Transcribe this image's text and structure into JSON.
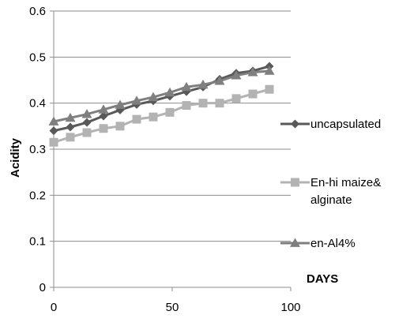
{
  "chart_data": {
    "type": "line",
    "title": "",
    "xlabel": "DAYS",
    "ylabel": "Acidity",
    "xlim": [
      0,
      100
    ],
    "ylim": [
      0,
      0.6
    ],
    "x_ticks": [
      "0",
      "50",
      "100"
    ],
    "y_ticks": [
      "0",
      "0.1",
      "0.2",
      "0.3",
      "0.4",
      "0.5",
      "0.6"
    ],
    "grid": "horizontal major gridlines",
    "legend_position": "right",
    "x": [
      0,
      7,
      14,
      21,
      28,
      35,
      42,
      49,
      56,
      63,
      70,
      77,
      84,
      91
    ],
    "series": [
      {
        "name": "uncapsulated",
        "marker": "diamond",
        "color": "#595959",
        "values": [
          0.34,
          0.348,
          0.358,
          0.372,
          0.385,
          0.397,
          0.405,
          0.415,
          0.425,
          0.435,
          0.452,
          0.465,
          0.47,
          0.48
        ]
      },
      {
        "name": "En-hi maize& alginate",
        "legend_lines": [
          "En-hi maize&",
          "alginate"
        ],
        "marker": "square",
        "color": "#b3b3b3",
        "values": [
          0.315,
          0.326,
          0.336,
          0.345,
          0.35,
          0.365,
          0.37,
          0.38,
          0.395,
          0.4,
          0.4,
          0.41,
          0.42,
          0.43
        ]
      },
      {
        "name": "en-Al4%",
        "marker": "triangle",
        "color": "#7f7f7f",
        "values": [
          0.36,
          0.368,
          0.376,
          0.386,
          0.396,
          0.405,
          0.413,
          0.423,
          0.435,
          0.44,
          0.448,
          0.46,
          0.467,
          0.47
        ]
      }
    ]
  }
}
